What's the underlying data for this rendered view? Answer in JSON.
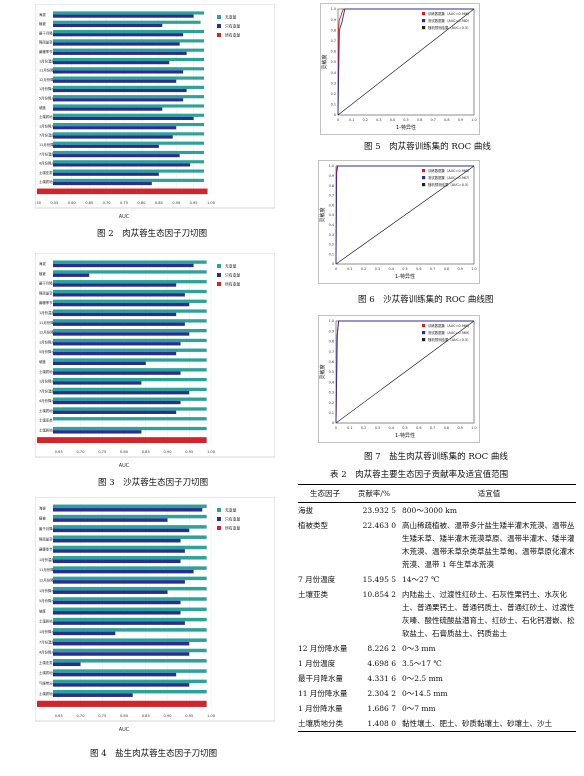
{
  "colors": {
    "train": "#2ba39b",
    "test": "#2a2f8f",
    "all": "#d3242c",
    "roc_diag": "#222222",
    "roc_train": "#e02020",
    "roc_test": "#2a2f8f"
  },
  "legend_jackknife": [
    "无变量",
    "只有变量",
    "所有变量"
  ],
  "fig2": {
    "caption": "图 2　肉苁蓉生态因子刀切图",
    "xlabel": "AUC",
    "chart_data": {
      "type": "bar",
      "title": "",
      "xlim": [
        0.5,
        1.0
      ],
      "xticks": [
        "0.50",
        "0.55",
        "0.60",
        "0.65",
        "0.70",
        "0.75",
        "0.80",
        "0.85",
        "0.90",
        "0.95",
        "1.00"
      ],
      "categories": [
        "海拔",
        "植被",
        "最干月降水量",
        "降雨量变化",
        "最暖季节平均温",
        "1月份温度",
        "11月份降水量",
        "12月份降水量",
        "1月份降水量",
        "5月份降水量",
        "坡度",
        "土壤质地",
        "1月份降水量",
        "7月份温度",
        "11月份降水量",
        "7月份温度",
        "4月份降水量",
        "土壤亚类",
        "土壤质地分类",
        "气候带分类"
      ],
      "series": [
        {
          "name": "无变量",
          "values": [
            0.98,
            0.97,
            0.98,
            0.98,
            0.98,
            0.98,
            0.98,
            0.98,
            0.98,
            0.98,
            0.98,
            0.98,
            0.98,
            0.98,
            0.98,
            0.98,
            0.98,
            0.98,
            0.98,
            0.98
          ]
        },
        {
          "name": "只有变量",
          "values": [
            0.95,
            0.86,
            0.92,
            0.91,
            0.93,
            0.88,
            0.92,
            0.9,
            0.93,
            0.92,
            0.86,
            0.95,
            0.9,
            0.89,
            0.85,
            0.91,
            0.94,
            0.85,
            0.83,
            0.91
          ]
        },
        {
          "name": "所有变量",
          "values": [
            null,
            null,
            null,
            null,
            null,
            null,
            null,
            null,
            null,
            null,
            null,
            null,
            null,
            null,
            null,
            null,
            null,
            null,
            null,
            0.99
          ]
        }
      ]
    }
  },
  "fig3": {
    "caption": "图 3　沙苁蓉生态因子刀切图",
    "xlabel": "AUC",
    "chart_data": {
      "type": "bar",
      "title": "",
      "xlim": [
        0.6,
        1.0
      ],
      "xticks": [
        "0.65",
        "0.70",
        "0.75",
        "0.80",
        "0.85",
        "0.90",
        "0.95",
        "1.00"
      ],
      "categories": [
        "海拔",
        "植被",
        "最干月降水量",
        "降雨量变化",
        "最暖季节平均温",
        "1月份温度",
        "11月份降水量",
        "12月份降水量",
        "1月份降水量",
        "5月份降水量",
        "坡度",
        "土壤质地",
        "1月份降水量",
        "7月份温度",
        "4月份降水量",
        "土壤质地分类",
        "土壤亚类",
        "土壤质地分类",
        "气候带分类"
      ],
      "series": [
        {
          "name": "无变量",
          "values": [
            0.99,
            0.99,
            0.99,
            0.99,
            0.99,
            0.99,
            0.99,
            0.99,
            0.99,
            0.99,
            0.99,
            0.99,
            0.99,
            0.99,
            0.99,
            0.99,
            0.99,
            0.99,
            0.99
          ]
        },
        {
          "name": "只有变量",
          "values": [
            0.96,
            0.72,
            0.92,
            0.94,
            0.95,
            0.92,
            0.94,
            0.95,
            0.93,
            0.92,
            0.85,
            0.93,
            0.84,
            0.95,
            0.93,
            0.92,
            0.62,
            0.84,
            0.92
          ]
        },
        {
          "name": "所有变量",
          "values": [
            null,
            null,
            null,
            null,
            null,
            null,
            null,
            null,
            null,
            null,
            null,
            null,
            null,
            null,
            null,
            null,
            null,
            null,
            0.99
          ]
        }
      ]
    }
  },
  "fig4": {
    "caption": "图 4　盐生肉苁蓉生态因子刀切图",
    "xlabel": "AUC",
    "chart_data": {
      "type": "bar",
      "title": "",
      "xlim": [
        0.6,
        1.0
      ],
      "xticks": [
        "0.65",
        "0.70",
        "0.75",
        "0.80",
        "0.85",
        "0.90",
        "0.95",
        "1.00"
      ],
      "categories": [
        "海拔",
        "植被",
        "最干月降水量",
        "降雨量变化",
        "最暖季节平均温",
        "1月份温度",
        "11月份降水量",
        "12月份降水量",
        "1月份降水量",
        "5月份降水量",
        "坡度",
        "土壤质地",
        "1月份降水量",
        "7月份温度",
        "4月份降水量",
        "土壤亚类",
        "土壤质地分类",
        "气候带分类",
        "土壤质地分类",
        "海拔分类"
      ],
      "series": [
        {
          "name": "无变量",
          "values": [
            0.99,
            0.99,
            0.99,
            0.99,
            0.99,
            0.99,
            0.99,
            0.99,
            0.99,
            0.99,
            0.99,
            0.99,
            0.99,
            0.99,
            0.99,
            0.99,
            0.99,
            0.99,
            0.99,
            0.99
          ]
        },
        {
          "name": "只有变量",
          "values": [
            0.98,
            0.9,
            0.95,
            0.93,
            0.94,
            0.93,
            0.96,
            0.94,
            0.9,
            0.93,
            0.93,
            0.94,
            0.78,
            0.95,
            0.95,
            0.7,
            0.92,
            0.95,
            0.82,
            0.9
          ]
        },
        {
          "name": "所有变量",
          "values": [
            null,
            null,
            null,
            null,
            null,
            null,
            null,
            null,
            null,
            null,
            null,
            null,
            null,
            null,
            null,
            null,
            null,
            null,
            null,
            0.99
          ]
        }
      ]
    }
  },
  "roc_axis": {
    "ylabel": "灵敏度",
    "xlabel": "1-特异性",
    "ticks": [
      "0",
      "0.1",
      "0.2",
      "0.3",
      "0.4",
      "0.5",
      "0.6",
      "0.7",
      "0.8",
      "0.9",
      "1.0"
    ]
  },
  "fig5": {
    "caption": "图 5　肉苁蓉训练集的 ROC 曲线",
    "chart_data": {
      "type": "line",
      "xlim": [
        0,
        1
      ],
      "ylim": [
        0,
        1
      ],
      "series": [
        {
          "name": "训练数据集（AUC=0.986）",
          "x": [
            0,
            0.005,
            0.01,
            0.02,
            0.03,
            0.04,
            1.0
          ],
          "y": [
            0,
            0.82,
            0.9,
            0.93,
            0.97,
            1.0,
            1.0
          ]
        },
        {
          "name": "测试数据集（AUC=0.982）",
          "x": [
            0,
            0.01,
            0.03,
            0.05,
            1.0
          ],
          "y": [
            0,
            0.8,
            0.88,
            1.0,
            1.0
          ]
        },
        {
          "name": "随机预测结果（AUC=0.5）",
          "x": [
            0,
            1
          ],
          "y": [
            0,
            1
          ]
        }
      ]
    }
  },
  "fig6": {
    "caption": "图 6　沙苁蓉训练集的 ROC 曲线图",
    "chart_data": {
      "type": "line",
      "xlim": [
        0,
        1
      ],
      "ylim": [
        0,
        1
      ],
      "series": [
        {
          "name": "训练数据集（AUC=0.968）",
          "x": [
            0,
            0.003,
            0.01,
            1.0
          ],
          "y": [
            0,
            0.95,
            1.0,
            1.0
          ]
        },
        {
          "name": "测试数据集（AUC=0.967）",
          "x": [
            0,
            0.005,
            0.012,
            1.0
          ],
          "y": [
            0,
            0.93,
            1.0,
            1.0
          ]
        },
        {
          "name": "随机预测结果（AUC=0.5）",
          "x": [
            0,
            1
          ],
          "y": [
            0,
            1
          ]
        }
      ]
    }
  },
  "fig7": {
    "caption": "图 7　盐生肉苁蓉训练集的 ROC 曲线",
    "chart_data": {
      "type": "line",
      "xlim": [
        0,
        1
      ],
      "ylim": [
        0,
        1
      ],
      "series": [
        {
          "name": "训练数据集（AUC=0.969）",
          "x": [
            0,
            0.01,
            0.02,
            1.0
          ],
          "y": [
            0,
            0.88,
            1.0,
            1.0
          ]
        },
        {
          "name": "测试数据集（AUC=0.969）",
          "x": [
            0,
            0.008,
            0.018,
            1.0
          ],
          "y": [
            0,
            0.85,
            1.0,
            1.0
          ]
        },
        {
          "name": "随机预测结果（AUC=0.5）",
          "x": [
            0,
            1
          ],
          "y": [
            0,
            1
          ]
        }
      ]
    }
  },
  "table2": {
    "title": "表 2　肉苁蓉主要生态因子贡献率及适宜值范围",
    "headers": [
      "生态因子",
      "贡献率/%",
      "适宜值"
    ],
    "rows": [
      [
        "海拔",
        "23.932 5",
        "800～3000 km"
      ],
      [
        "植被类型",
        "22.463 0",
        "高山稀疏植被、温带多汁盐生矮半灌木荒漠、温带丛生矮禾草、矮半灌木荒漠草原、温带半灌木、矮半灌木荒漠、温带禾草杂类草盐生草甸、温带草原化灌木荒漠、温带 1 年生草本荒漠"
      ],
      [
        "7 月份温度",
        "15.495 5",
        "14～27 ℃"
      ],
      [
        "土壤亚类",
        "10.854 2",
        "内陆盐土、过渡性红砂土、石灰性栗钙土、水灰化土、普通栗钙土、普通钙质土、普通红砂土、过渡性灰嗪、酸性硫酸盐潜育土、红砂土、石化钙潜嵌、松软盐土、石膏质盐土、钙质盐土"
      ],
      [
        "12 月份降水量",
        "8.226 2",
        "0～3 mm"
      ],
      [
        "1 月份温度",
        "4.698 6",
        "3.5～17 ℃"
      ],
      [
        "最干月降水量",
        "4.331 6",
        "0～2.5 mm"
      ],
      [
        "11 月份降水量",
        "2.304 2",
        "0～14.5 mm"
      ],
      [
        "1 月份降水量",
        "1.686 7",
        "0～7 mm"
      ],
      [
        "土壤质地分类",
        "1.408 0",
        "黏性壤土、肥土、砂质黏壤土、砂壤土、沙土"
      ]
    ]
  }
}
